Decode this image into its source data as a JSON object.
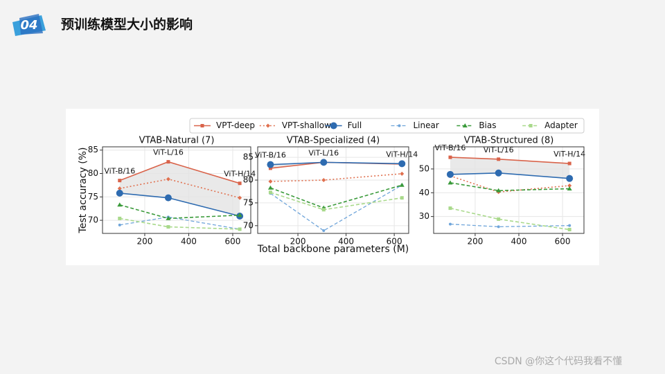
{
  "header": {
    "badge": "04",
    "title": "预训练模型大小的影响"
  },
  "watermark": "CSDN @你这个代码我看不懂",
  "chart_data": [
    {
      "type": "line",
      "title": "VTAB-Natural (7)",
      "ylabel": "Test accuracy (%)",
      "x": [
        86,
        307,
        632
      ],
      "xlim": [
        8,
        682
      ],
      "xticks": [
        200,
        400,
        600
      ],
      "ylim": [
        67.2,
        85.7
      ],
      "yticks": [
        70,
        75,
        80,
        85
      ],
      "grid": true,
      "annotations": [
        "ViT-B/16",
        "ViT-L/16",
        "ViT-H/14"
      ],
      "shade_between": [
        0,
        2
      ],
      "shade_color": "#e4e4e4",
      "series": [
        {
          "name": "VPT-deep",
          "color": "#d9634a",
          "values": [
            78.5,
            82.5,
            77.9
          ]
        },
        {
          "name": "VPT-shallow",
          "color": "#e0704f",
          "values": [
            76.8,
            78.8,
            74.8
          ]
        },
        {
          "name": "Full",
          "color": "#2e6bb0",
          "values": [
            75.8,
            74.8,
            70.9
          ]
        },
        {
          "name": "Linear",
          "color": "#6fa5da",
          "values": [
            69.0,
            70.7,
            68.1
          ]
        },
        {
          "name": "Bias",
          "color": "#3a9a3a",
          "values": [
            73.3,
            70.4,
            71.1
          ]
        },
        {
          "name": "Adapter",
          "color": "#a9d98b",
          "values": [
            70.4,
            68.6,
            68.1
          ]
        }
      ]
    },
    {
      "type": "line",
      "title": "VTAB-Specialized (4)",
      "xlabel": "Total backbone parameters (M)",
      "x": [
        86,
        307,
        632
      ],
      "xlim": [
        33,
        660
      ],
      "xticks": [
        200,
        400,
        600
      ],
      "ylim": [
        68.3,
        87.3
      ],
      "yticks": [
        70,
        75,
        80,
        85
      ],
      "grid": true,
      "annotations": [
        "ViT-B/16",
        "ViT-L/16",
        "ViT-H/14"
      ],
      "shade_between": [
        0,
        2
      ],
      "shade_color": "#e4e4e4",
      "series": [
        {
          "name": "VPT-deep",
          "color": "#d9634a",
          "values": [
            82.6,
            83.9,
            83.5
          ]
        },
        {
          "name": "VPT-shallow",
          "color": "#e0704f",
          "values": [
            79.7,
            80.0,
            81.4
          ]
        },
        {
          "name": "Full",
          "color": "#2e6bb0",
          "values": [
            83.4,
            83.9,
            83.6
          ]
        },
        {
          "name": "Linear",
          "color": "#6fa5da",
          "values": [
            77.1,
            68.9,
            78.9
          ]
        },
        {
          "name": "Bias",
          "color": "#3a9a3a",
          "values": [
            78.3,
            73.9,
            78.9
          ]
        },
        {
          "name": "Adapter",
          "color": "#a9d98b",
          "values": [
            77.3,
            73.5,
            76.1
          ]
        }
      ]
    },
    {
      "type": "line",
      "title": "VTAB-Structured (8)",
      "x": [
        86,
        307,
        632
      ],
      "xlim": [
        10,
        698
      ],
      "xticks": [
        200,
        400,
        600
      ],
      "ylim": [
        22.9,
        59.3
      ],
      "yticks": [
        30,
        40,
        50
      ],
      "grid": true,
      "annotations": [
        "ViT-B/16",
        "ViT-L/16",
        "ViT-H/14"
      ],
      "shade_between": [
        0,
        2
      ],
      "shade_color": "#e4e4e4",
      "series": [
        {
          "name": "VPT-deep",
          "color": "#d9634a",
          "values": [
            54.9,
            54.1,
            52.3
          ]
        },
        {
          "name": "VPT-shallow",
          "color": "#e0704f",
          "values": [
            47.1,
            40.3,
            43.0
          ]
        },
        {
          "name": "Full",
          "color": "#2e6bb0",
          "values": [
            47.7,
            48.3,
            46.0
          ]
        },
        {
          "name": "Linear",
          "color": "#6fa5da",
          "values": [
            26.8,
            25.7,
            26.2
          ]
        },
        {
          "name": "Bias",
          "color": "#3a9a3a",
          "values": [
            44.2,
            40.9,
            41.7
          ]
        },
        {
          "name": "Adapter",
          "color": "#a9d98b",
          "values": [
            33.5,
            28.9,
            24.5
          ]
        }
      ]
    }
  ]
}
